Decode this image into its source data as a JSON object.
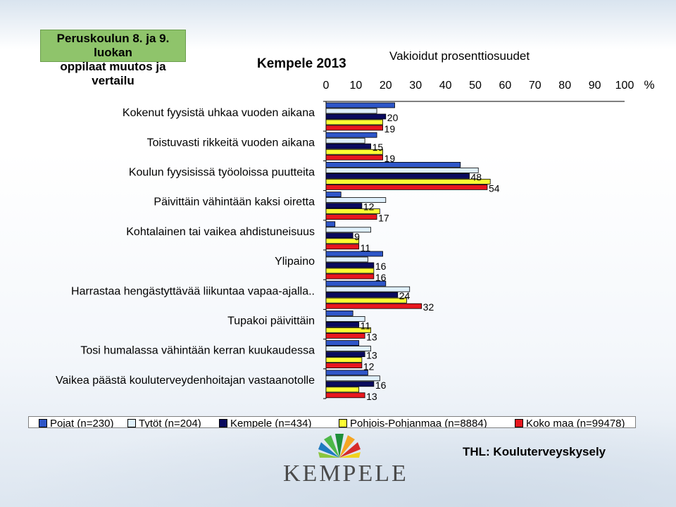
{
  "header": {
    "box_line1": "Peruskoulun 8. ja 9. luokan",
    "box_line2": "oppilaat muutos ja vertailu",
    "chart_title": "Kempele 2013",
    "axis_title": "Vakioidut prosenttiosuudet"
  },
  "footer": {
    "logo_text": "KEMPELE",
    "source": "THL: Kouluterveyskysely"
  },
  "colors": {
    "pojat": "#2e56c8",
    "tytot": "#dff0fb",
    "kempele": "#0a0a5e",
    "pohjois_pohjanmaa": "#ffff33",
    "koko_maa": "#e8171e"
  },
  "chart_data": {
    "type": "bar",
    "orientation": "horizontal",
    "xlim": [
      0,
      100
    ],
    "x_ticks": [
      "0",
      "10",
      "20",
      "30",
      "40",
      "50",
      "60",
      "70",
      "80",
      "90",
      "100"
    ],
    "unit_label": "%",
    "grid": false,
    "legend_position": "bottom",
    "categories": [
      "Kokenut fyysistä uhkaa vuoden aikana",
      "Toistuvasti rikkeitä vuoden aikana",
      "Koulun fyysisissä työoloissa puutteita",
      "Päivittäin vähintään kaksi oiretta",
      "Kohtalainen tai vaikea ahdistuneisuus",
      "Ylipaino",
      "Harrastaa hengästyttävää liikuntaa vapaa-ajalla..",
      "Tupakoi päivittäin",
      "Tosi humalassa vähintään kerran kuukaudessa",
      "Vaikea päästä kouluterveydenhoitajan vastaanotolle"
    ],
    "series": [
      {
        "name": "Pojat (n=230)",
        "color": "#2e56c8",
        "values": [
          23,
          17,
          45,
          5,
          3,
          19,
          20,
          9,
          11,
          14
        ]
      },
      {
        "name": "Tytöt (n=204)",
        "color": "#dff0fb",
        "values": [
          17,
          13,
          51,
          20,
          15,
          14,
          28,
          13,
          15,
          18
        ]
      },
      {
        "name": "Kempele (n=434)",
        "color": "#0a0a5e",
        "values": [
          20,
          15,
          48,
          12,
          9,
          16,
          24,
          11,
          13,
          16
        ]
      },
      {
        "name": "Pohjois-Pohjanmaa (n=8884)",
        "color": "#ffff33",
        "values": [
          19,
          19,
          55,
          18,
          11,
          16,
          27,
          15,
          12,
          11
        ]
      },
      {
        "name": "Koko maa (n=99478)",
        "color": "#e8171e",
        "values": [
          19,
          19,
          54,
          17,
          11,
          16,
          32,
          13,
          12,
          13
        ]
      }
    ],
    "data_labels": {
      "Kempele (n=434)": [
        "20",
        "15",
        "48",
        "12",
        "9",
        "16",
        "24",
        "11",
        "13",
        "16"
      ],
      "Koko maa (n=99478)": [
        "19",
        "19",
        "54",
        "17",
        "11",
        "16",
        "32",
        "13",
        "12",
        "13"
      ]
    }
  }
}
